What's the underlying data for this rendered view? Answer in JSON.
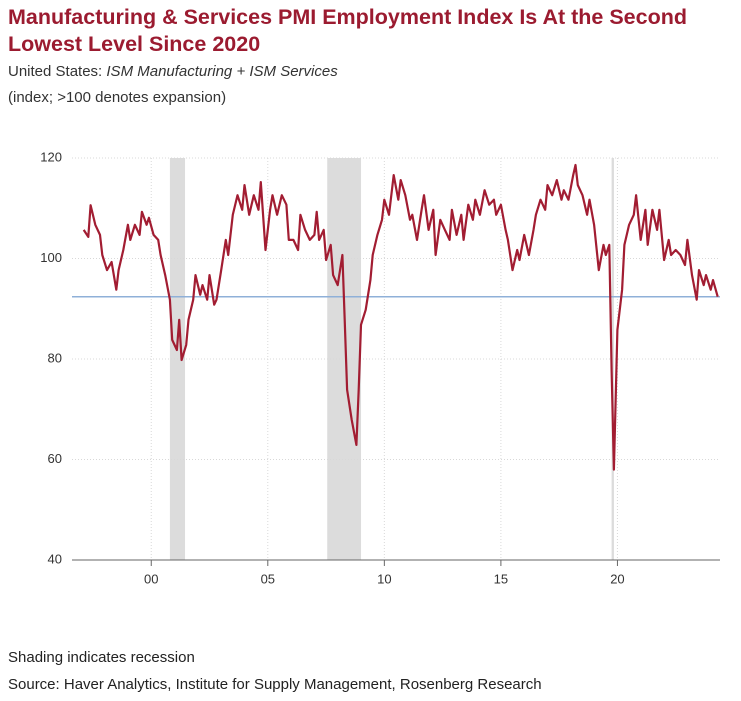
{
  "chart_data": {
    "type": "line",
    "title": "Manufacturing & Services PMI Employment Index Is At the Second Lowest Level Since 2020",
    "subtitle": {
      "text": "United States:",
      "italic": "ISM Manufacturing + ISM Services"
    },
    "y_axis_label": "(index; >100 denotes expansion)",
    "notes": [
      "Shading indicates recession",
      "Source: Haver Analytics, Institute for Supply Management, Rosenberg Research"
    ],
    "xlim": [
      1996.6,
      2024.4
    ],
    "ylim": [
      40,
      120
    ],
    "yticks": [
      40,
      60,
      80,
      100,
      120
    ],
    "xticks": [
      {
        "value": 2000,
        "label": "00"
      },
      {
        "value": 2005,
        "label": "05"
      },
      {
        "value": 2010,
        "label": "10"
      },
      {
        "value": 2015,
        "label": "15"
      },
      {
        "value": 2020,
        "label": "20"
      }
    ],
    "grid": true,
    "shaded_periods": [
      [
        2000.8,
        2001.45
      ],
      [
        2007.55,
        2009.0
      ],
      [
        2019.75,
        2019.85
      ]
    ],
    "reference_line": {
      "value": 92.4,
      "color": "#8fb0d8"
    },
    "x": [
      1997.1,
      1997.3,
      1997.4,
      1997.6,
      1997.8,
      1997.9,
      1998.1,
      1998.3,
      1998.5,
      1998.6,
      1998.8,
      1999.0,
      1999.1,
      1999.3,
      1999.5,
      1999.6,
      1999.8,
      1999.9,
      2000.1,
      2000.3,
      2000.4,
      2000.6,
      2000.8,
      2000.9,
      2001.1,
      2001.2,
      2001.3,
      2001.5,
      2001.6,
      2001.8,
      2001.9,
      2002.1,
      2002.2,
      2002.4,
      2002.5,
      2002.7,
      2002.8,
      2003.0,
      2003.2,
      2003.3,
      2003.5,
      2003.7,
      2003.9,
      2004.0,
      2004.2,
      2004.4,
      2004.6,
      2004.7,
      2004.9,
      2005.1,
      2005.2,
      2005.4,
      2005.6,
      2005.8,
      2005.9,
      2006.1,
      2006.3,
      2006.4,
      2006.6,
      2006.8,
      2007.0,
      2007.1,
      2007.2,
      2007.4,
      2007.5,
      2007.7,
      2007.8,
      2008.0,
      2008.2,
      2008.3,
      2008.4,
      2008.6,
      2008.8,
      2008.9,
      2009.0,
      2009.2,
      2009.4,
      2009.5,
      2009.7,
      2009.9,
      2010.0,
      2010.2,
      2010.4,
      2010.6,
      2010.7,
      2010.9,
      2011.1,
      2011.2,
      2011.4,
      2011.6,
      2011.7,
      2011.9,
      2012.1,
      2012.2,
      2012.4,
      2012.6,
      2012.8,
      2012.9,
      2013.1,
      2013.3,
      2013.4,
      2013.6,
      2013.8,
      2013.9,
      2014.1,
      2014.3,
      2014.5,
      2014.7,
      2014.8,
      2015.0,
      2015.2,
      2015.3,
      2015.5,
      2015.7,
      2015.8,
      2016.0,
      2016.2,
      2016.4,
      2016.5,
      2016.7,
      2016.9,
      2017.0,
      2017.2,
      2017.4,
      2017.6,
      2017.7,
      2017.9,
      2018.1,
      2018.2,
      2018.3,
      2018.5,
      2018.7,
      2018.8,
      2019.0,
      2019.2,
      2019.4,
      2019.5,
      2019.65,
      2019.75,
      2019.85,
      2020.0,
      2020.2,
      2020.3,
      2020.5,
      2020.7,
      2020.8,
      2021.0,
      2021.2,
      2021.3,
      2021.5,
      2021.7,
      2021.8,
      2022.0,
      2022.2,
      2022.3,
      2022.5,
      2022.7,
      2022.9,
      2023.0,
      2023.2,
      2023.4,
      2023.5,
      2023.7,
      2023.8,
      2024.0,
      2024.1,
      2024.3
    ],
    "series": [
      {
        "name": "ISM Manufacturing + ISM Services",
        "color": "#a21d32",
        "values": [
          105.7,
          104.3,
          110.6,
          106.7,
          104.7,
          100.7,
          97.7,
          99.3,
          93.8,
          97.7,
          101.7,
          106.7,
          103.7,
          106.7,
          104.7,
          109.3,
          106.7,
          108.1,
          104.7,
          103.7,
          100.7,
          96.7,
          91.8,
          83.8,
          81.8,
          87.8,
          79.8,
          82.8,
          87.8,
          91.8,
          96.7,
          92.8,
          94.7,
          91.8,
          96.7,
          90.8,
          91.8,
          97.7,
          103.7,
          100.7,
          108.7,
          112.6,
          109.7,
          114.6,
          108.7,
          112.6,
          109.7,
          115.2,
          101.7,
          109.7,
          112.6,
          108.7,
          112.6,
          110.7,
          103.7,
          103.7,
          101.7,
          108.7,
          105.7,
          103.7,
          104.7,
          109.3,
          103.7,
          105.7,
          99.7,
          102.7,
          96.7,
          94.7,
          100.7,
          87.8,
          73.9,
          67.9,
          62.9,
          73.9,
          86.8,
          89.8,
          95.7,
          100.7,
          104.7,
          107.7,
          111.7,
          108.7,
          116.6,
          111.7,
          115.6,
          112.6,
          107.7,
          108.7,
          103.7,
          109.7,
          112.6,
          105.7,
          109.7,
          100.7,
          107.7,
          105.7,
          103.7,
          109.7,
          104.7,
          108.7,
          103.7,
          110.7,
          107.7,
          111.7,
          108.7,
          113.6,
          110.7,
          111.7,
          108.7,
          110.7,
          105.7,
          103.7,
          97.7,
          101.7,
          99.7,
          104.7,
          100.7,
          105.7,
          108.7,
          111.7,
          109.7,
          114.6,
          112.6,
          115.6,
          111.7,
          113.6,
          111.7,
          116.6,
          118.6,
          114.6,
          112.6,
          108.7,
          111.7,
          106.7,
          97.7,
          102.7,
          100.7,
          102.7,
          77.9,
          58.0,
          85.8,
          93.8,
          102.7,
          106.7,
          108.7,
          112.6,
          103.7,
          109.7,
          102.7,
          109.7,
          105.7,
          109.7,
          99.7,
          103.7,
          100.7,
          101.7,
          100.7,
          98.7,
          103.7,
          96.7,
          91.8,
          97.7,
          94.7,
          96.7,
          93.8,
          95.7,
          92.4
        ]
      }
    ]
  }
}
